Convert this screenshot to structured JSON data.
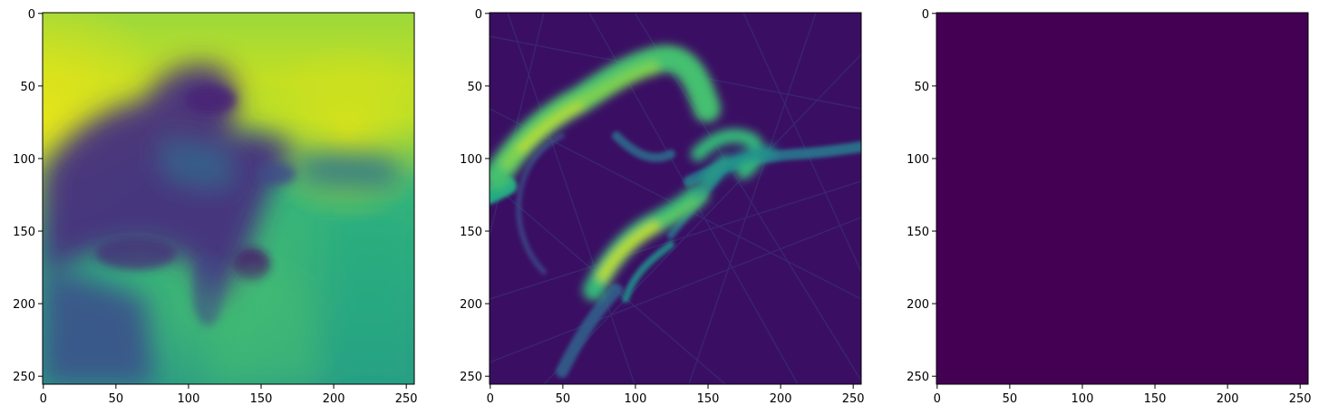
{
  "chart_data": [
    {
      "type": "heatmap",
      "title": "",
      "xlabel": "",
      "ylabel": "",
      "xlim": [
        0,
        255
      ],
      "ylim": [
        255,
        0
      ],
      "x_ticks": [
        0,
        50,
        100,
        150,
        200,
        250
      ],
      "y_ticks": [
        0,
        50,
        100,
        150,
        200,
        250
      ],
      "x_tick_labels": [
        "0",
        "50",
        "100",
        "150",
        "200",
        "250"
      ],
      "y_tick_labels": [
        "0",
        "50",
        "100",
        "150",
        "200",
        "250"
      ],
      "colormap": "viridis",
      "description_colors": {
        "low": "#440154",
        "mid": "#21918c",
        "high": "#fde725"
      },
      "grid": false
    },
    {
      "type": "heatmap",
      "title": "",
      "xlabel": "",
      "ylabel": "",
      "xlim": [
        0,
        255
      ],
      "ylim": [
        255,
        0
      ],
      "x_ticks": [
        0,
        50,
        100,
        150,
        200,
        250
      ],
      "y_ticks": [
        0,
        50,
        100,
        150,
        200,
        250
      ],
      "x_tick_labels": [
        "0",
        "50",
        "100",
        "150",
        "200",
        "250"
      ],
      "y_tick_labels": [
        "0",
        "50",
        "100",
        "150",
        "200",
        "250"
      ],
      "colormap": "viridis",
      "grid": false
    },
    {
      "type": "heatmap",
      "title": "",
      "xlabel": "",
      "ylabel": "",
      "xlim": [
        0,
        255
      ],
      "ylim": [
        255,
        0
      ],
      "x_ticks": [
        0,
        50,
        100,
        150,
        200,
        250
      ],
      "y_ticks": [
        0,
        50,
        100,
        150,
        200,
        250
      ],
      "x_tick_labels": [
        "0",
        "50",
        "100",
        "150",
        "200",
        "250"
      ],
      "y_tick_labels": [
        "0",
        "50",
        "100",
        "150",
        "200",
        "250"
      ],
      "colormap": "viridis",
      "uniform_value_color": "#440154",
      "grid": false
    }
  ]
}
